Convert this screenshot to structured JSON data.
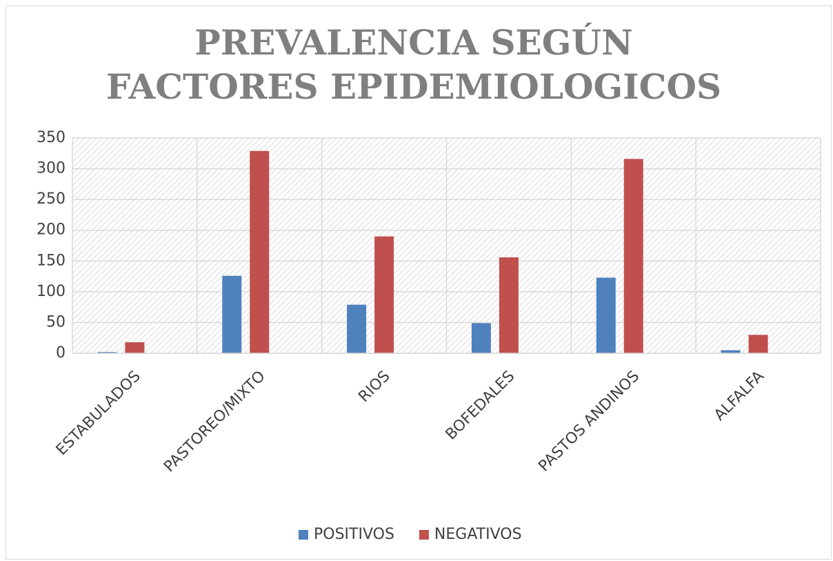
{
  "chart_data": {
    "type": "bar",
    "title": "PREVALENCIA SEGÚN FACTORES EPIDEMIOLOGICOS",
    "categories": [
      "ESTABULADOS",
      "PASTOREO/MIXTO",
      "RIOS",
      "BOFEDALES",
      "PASTOS ANDINOS",
      "ALFALFA"
    ],
    "series": [
      {
        "name": "POSITIVOS",
        "color": "#4f81bd",
        "values": [
          2,
          126,
          79,
          49,
          123,
          5
        ]
      },
      {
        "name": "NEGATIVOS",
        "color": "#c0504d",
        "values": [
          18,
          329,
          190,
          156,
          316,
          30
        ]
      }
    ],
    "ylim": [
      0,
      350
    ],
    "yticks": [
      0,
      50,
      100,
      150,
      200,
      250,
      300,
      350
    ],
    "grid": true,
    "legend": "bottom"
  }
}
